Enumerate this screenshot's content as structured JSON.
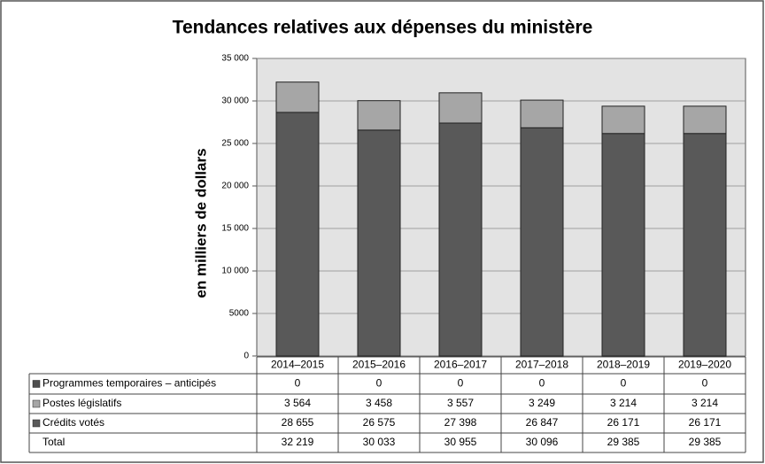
{
  "chart_data": {
    "type": "bar",
    "stacked": true,
    "title": "Tendances relatives aux dépenses du ministère",
    "y_label": "en milliers de dollars",
    "categories": [
      "2014–2015",
      "2015–2016",
      "2016–2017",
      "2017–2018",
      "2018–2019",
      "2019–2020"
    ],
    "series": [
      {
        "name": "Programmes temporaires –  anticipés",
        "color": "#4d4d4d",
        "values": [
          0,
          0,
          0,
          0,
          0,
          0
        ],
        "value_labels": [
          "0",
          "0",
          "0",
          "0",
          "0",
          "0"
        ]
      },
      {
        "name": "Postes législatifs",
        "color": "#a6a6a6",
        "values": [
          3564,
          3458,
          3557,
          3249,
          3214,
          3214
        ],
        "value_labels": [
          "3 564",
          "3 458",
          "3 557",
          "3 249",
          "3 214",
          "3 214"
        ]
      },
      {
        "name": "Crédits votés",
        "color": "#595959",
        "values": [
          28655,
          26575,
          27398,
          26847,
          26171,
          26171
        ],
        "value_labels": [
          "28 655",
          "26 575",
          "27 398",
          "26 847",
          "26 171",
          "26 171"
        ]
      }
    ],
    "total": {
      "name": "Total",
      "values": [
        32219,
        30033,
        30955,
        30096,
        29385,
        29385
      ],
      "value_labels": [
        "32 219",
        "30 033",
        "30 955",
        "30 096",
        "29 385",
        "29 385"
      ]
    },
    "ylim": [
      0,
      35000
    ],
    "yticks": [
      0,
      5000,
      {
        "value": 10000,
        "label": "10 000"
      },
      {
        "value": 15000,
        "label": "15 000"
      },
      {
        "value": 20000,
        "label": "20 000"
      },
      {
        "value": 25000,
        "label": "25 000"
      },
      {
        "value": 30000,
        "label": "30 000"
      },
      {
        "value": 35000,
        "label": "35 000"
      }
    ],
    "grid": true,
    "plot_background": "#e3e3e3"
  }
}
